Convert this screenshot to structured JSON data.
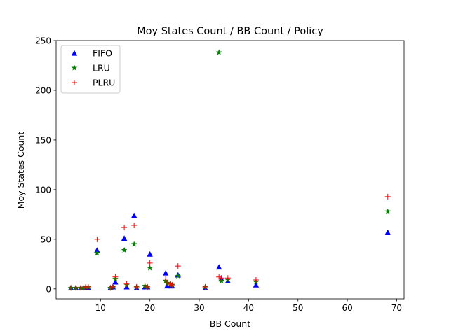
{
  "chart_data": {
    "type": "scatter",
    "title": "Moy States Count / BB Count / Policy",
    "xlabel": "BB Count",
    "ylabel": "Moy States Count",
    "xlim": [
      1,
      71.5
    ],
    "ylim": [
      -10,
      250
    ],
    "xticks": [
      10,
      20,
      30,
      40,
      50,
      60,
      70
    ],
    "yticks": [
      0,
      50,
      100,
      150,
      200,
      250
    ],
    "grid": false,
    "legend_position": "top-left",
    "series": [
      {
        "name": "FIFO",
        "marker": "triangle",
        "color": "#0000ff",
        "points": [
          [
            4,
            1
          ],
          [
            5,
            1
          ],
          [
            6,
            1
          ],
          [
            6.5,
            1
          ],
          [
            7,
            1
          ],
          [
            7.5,
            1
          ],
          [
            9.3,
            39
          ],
          [
            12,
            1
          ],
          [
            12.5,
            2
          ],
          [
            13,
            7
          ],
          [
            14.8,
            51
          ],
          [
            15.3,
            2
          ],
          [
            16.8,
            74
          ],
          [
            17.3,
            1
          ],
          [
            19,
            2
          ],
          [
            19.5,
            2
          ],
          [
            20,
            35
          ],
          [
            23.2,
            16
          ],
          [
            23.5,
            3
          ],
          [
            24.2,
            3
          ],
          [
            24.5,
            3
          ],
          [
            25.7,
            14
          ],
          [
            31.2,
            1
          ],
          [
            34,
            22
          ],
          [
            34.5,
            10
          ],
          [
            35.8,
            8
          ],
          [
            41.5,
            4
          ],
          [
            68.2,
            57
          ]
        ]
      },
      {
        "name": "LRU",
        "marker": "star",
        "color": "#008000",
        "points": [
          [
            4,
            1
          ],
          [
            5,
            1
          ],
          [
            6,
            1
          ],
          [
            6.5,
            1
          ],
          [
            7,
            2
          ],
          [
            7.5,
            2
          ],
          [
            9.3,
            36
          ],
          [
            12,
            1
          ],
          [
            12.5,
            2
          ],
          [
            13,
            10
          ],
          [
            14.8,
            39
          ],
          [
            15.3,
            4
          ],
          [
            16.8,
            45
          ],
          [
            17.3,
            2
          ],
          [
            19,
            3
          ],
          [
            19.5,
            2
          ],
          [
            20,
            21
          ],
          [
            23.2,
            8
          ],
          [
            23.5,
            6
          ],
          [
            24.2,
            5
          ],
          [
            24.5,
            4
          ],
          [
            25.7,
            13
          ],
          [
            31.2,
            2
          ],
          [
            34,
            238
          ],
          [
            34.5,
            8
          ],
          [
            35.8,
            9
          ],
          [
            41.5,
            7
          ],
          [
            68.2,
            78
          ]
        ]
      },
      {
        "name": "PLRU",
        "marker": "plus",
        "color": "#ff0000",
        "points": [
          [
            4,
            1
          ],
          [
            5,
            1
          ],
          [
            6,
            1
          ],
          [
            6.5,
            1
          ],
          [
            7,
            2
          ],
          [
            7.5,
            2
          ],
          [
            9.3,
            50
          ],
          [
            12,
            1
          ],
          [
            12.5,
            2
          ],
          [
            13,
            12
          ],
          [
            14.8,
            62
          ],
          [
            15.3,
            5
          ],
          [
            16.8,
            64
          ],
          [
            17.3,
            2
          ],
          [
            19,
            3
          ],
          [
            19.5,
            2
          ],
          [
            20,
            26
          ],
          [
            23.2,
            10
          ],
          [
            23.5,
            6
          ],
          [
            24.2,
            5
          ],
          [
            24.5,
            4
          ],
          [
            25.7,
            23
          ],
          [
            31.2,
            2
          ],
          [
            34,
            12
          ],
          [
            34.5,
            11
          ],
          [
            35.8,
            11
          ],
          [
            41.5,
            9
          ],
          [
            68.2,
            93
          ]
        ]
      }
    ]
  }
}
